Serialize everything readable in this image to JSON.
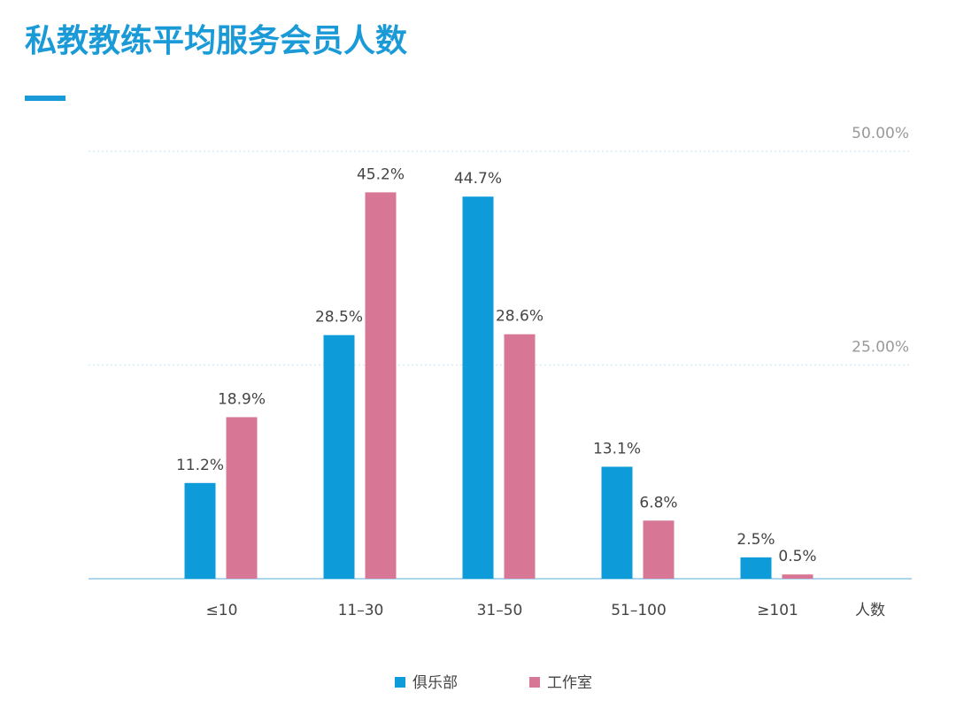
{
  "chart_data": {
    "type": "bar",
    "title": "私教教练平均服务会员人数",
    "categories": [
      "≤10",
      "11–30",
      "31–50",
      "51–100",
      "≥101"
    ],
    "series": [
      {
        "name": "俱乐部",
        "color": "#0d9bd9",
        "values": [
          11.2,
          28.5,
          44.7,
          13.1,
          2.5
        ],
        "value_labels": [
          "11.2%",
          "28.5%",
          "44.7%",
          "13.1%",
          "2.5%"
        ]
      },
      {
        "name": "工作室",
        "color": "#d87795",
        "values": [
          18.9,
          45.2,
          28.6,
          6.8,
          0.5
        ],
        "value_labels": [
          "18.9%",
          "45.2%",
          "28.6%",
          "6.8%",
          "0.5%"
        ]
      }
    ],
    "x_label": "人数",
    "ylim": [
      0,
      50
    ],
    "yticks": [
      {
        "value": 25,
        "label": "25.00%"
      },
      {
        "value": 50,
        "label": "50.00%"
      }
    ],
    "grid": true,
    "legend": "bottom"
  }
}
